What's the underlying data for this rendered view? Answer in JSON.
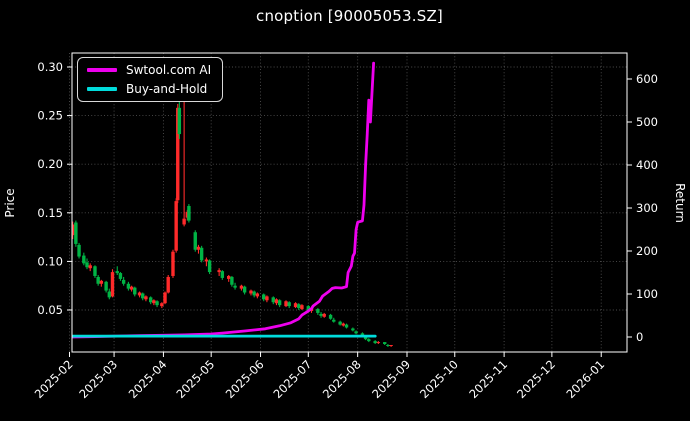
{
  "title": "cnoption [90005053.SZ]",
  "legend": [
    {
      "label": "Swtool.com AI",
      "color": "#ee00ee"
    },
    {
      "label": "Buy-and-Hold",
      "color": "#00dcdc"
    }
  ],
  "colors": {
    "background": "#000000",
    "foreground": "#ffffff",
    "grid": "#4d4d4d",
    "spine": "#ffffff",
    "candle_up": "#ff2a2a",
    "candle_down": "#00b445",
    "strategy_line": "#ee00ee",
    "buy_hold_line": "#00dcdc"
  },
  "chart_data": {
    "type": "candlestick+line",
    "title": "cnoption [90005053.SZ]",
    "grid": "dotted",
    "legend_position": "upper-left",
    "price_axis": {
      "label": "Price",
      "side": "left",
      "tick_values": [
        0.05,
        0.1,
        0.15,
        0.2,
        0.25,
        0.3
      ],
      "tick_labels": [
        "0.05",
        "0.10",
        "0.15",
        "0.20",
        "0.25",
        "0.30"
      ],
      "range": [
        0.008,
        0.315
      ]
    },
    "return_axis": {
      "label": "Return",
      "side": "right",
      "tick_values": [
        0,
        100,
        200,
        300,
        400,
        500,
        600
      ],
      "tick_labels": [
        "0",
        "100",
        "200",
        "300",
        "400",
        "500",
        "600"
      ],
      "range": [
        -35,
        660
      ]
    },
    "x_axis": {
      "tick_labels": [
        "2025-02",
        "2025-03",
        "2025-04",
        "2025-05",
        "2025-06",
        "2025-07",
        "2025-08",
        "2025-09",
        "2025-10",
        "2025-11",
        "2025-12",
        "2026-01"
      ],
      "range": [
        "2025-01-30",
        "2026-01-17"
      ]
    },
    "candles": [
      [
        "2025-02-03",
        0.127,
        0.141,
        0.123,
        0.138
      ],
      [
        "2025-02-05",
        0.14,
        0.142,
        0.115,
        0.118
      ],
      [
        "2025-02-07",
        0.117,
        0.119,
        0.103,
        0.105
      ],
      [
        "2025-02-10",
        0.106,
        0.109,
        0.096,
        0.098
      ],
      [
        "2025-02-12",
        0.099,
        0.103,
        0.092,
        0.094
      ],
      [
        "2025-02-14",
        0.093,
        0.098,
        0.09,
        0.096
      ],
      [
        "2025-02-17",
        0.095,
        0.096,
        0.083,
        0.085
      ],
      [
        "2025-02-19",
        0.084,
        0.086,
        0.075,
        0.077
      ],
      [
        "2025-02-21",
        0.077,
        0.081,
        0.074,
        0.08
      ],
      [
        "2025-02-24",
        0.079,
        0.08,
        0.068,
        0.07
      ],
      [
        "2025-02-26",
        0.069,
        0.072,
        0.061,
        0.063
      ],
      [
        "2025-02-28",
        0.064,
        0.092,
        0.063,
        0.089
      ],
      [
        "2025-03-03",
        0.09,
        0.095,
        0.086,
        0.088
      ],
      [
        "2025-03-05",
        0.088,
        0.089,
        0.08,
        0.082
      ],
      [
        "2025-03-07",
        0.081,
        0.084,
        0.075,
        0.077
      ],
      [
        "2025-03-10",
        0.077,
        0.079,
        0.07,
        0.072
      ],
      [
        "2025-03-12",
        0.071,
        0.075,
        0.069,
        0.074
      ],
      [
        "2025-03-14",
        0.073,
        0.074,
        0.064,
        0.066
      ],
      [
        "2025-03-17",
        0.065,
        0.069,
        0.063,
        0.068
      ],
      [
        "2025-03-19",
        0.067,
        0.068,
        0.06,
        0.062
      ],
      [
        "2025-03-21",
        0.061,
        0.065,
        0.059,
        0.064
      ],
      [
        "2025-03-24",
        0.063,
        0.064,
        0.056,
        0.058
      ],
      [
        "2025-03-26",
        0.057,
        0.061,
        0.055,
        0.06
      ],
      [
        "2025-03-28",
        0.059,
        0.06,
        0.053,
        0.055
      ],
      [
        "2025-03-31",
        0.054,
        0.058,
        0.052,
        0.057
      ],
      [
        "2025-04-02",
        0.057,
        0.069,
        0.056,
        0.068
      ],
      [
        "2025-04-04",
        0.068,
        0.086,
        0.067,
        0.084
      ],
      [
        "2025-04-07",
        0.085,
        0.112,
        0.083,
        0.11
      ],
      [
        "2025-04-09",
        0.111,
        0.165,
        0.109,
        0.162
      ],
      [
        "2025-04-10",
        0.163,
        0.262,
        0.16,
        0.258
      ],
      [
        "2025-04-11",
        0.258,
        0.264,
        0.226,
        0.231
      ],
      [
        "2025-04-14",
        0.138,
        0.268,
        0.136,
        0.144
      ],
      [
        "2025-04-16",
        0.145,
        0.153,
        0.142,
        0.151
      ],
      [
        "2025-04-17",
        0.157,
        0.159,
        0.14,
        0.142
      ],
      [
        "2025-04-21",
        0.13,
        0.132,
        0.11,
        0.112
      ],
      [
        "2025-04-23",
        0.112,
        0.117,
        0.108,
        0.115
      ],
      [
        "2025-04-25",
        0.114,
        0.116,
        0.099,
        0.101
      ],
      [
        "2025-04-28",
        0.1,
        0.104,
        0.095,
        0.102
      ],
      [
        "2025-04-30",
        0.101,
        0.102,
        0.087,
        0.089
      ],
      [
        "2025-05-06",
        0.089,
        0.093,
        0.085,
        0.091
      ],
      [
        "2025-05-08",
        0.09,
        0.091,
        0.081,
        0.083
      ],
      [
        "2025-05-12",
        0.082,
        0.086,
        0.079,
        0.085
      ],
      [
        "2025-05-14",
        0.084,
        0.085,
        0.074,
        0.076
      ],
      [
        "2025-05-16",
        0.075,
        0.078,
        0.071,
        0.073
      ],
      [
        "2025-05-20",
        0.072,
        0.076,
        0.07,
        0.075
      ],
      [
        "2025-05-22",
        0.074,
        0.075,
        0.066,
        0.068
      ],
      [
        "2025-05-26",
        0.067,
        0.071,
        0.065,
        0.07
      ],
      [
        "2025-05-28",
        0.069,
        0.07,
        0.063,
        0.065
      ],
      [
        "2025-05-30",
        0.064,
        0.068,
        0.062,
        0.067
      ],
      [
        "2025-06-03",
        0.066,
        0.067,
        0.059,
        0.061
      ],
      [
        "2025-06-05",
        0.06,
        0.065,
        0.058,
        0.064
      ],
      [
        "2025-06-09",
        0.063,
        0.064,
        0.056,
        0.058
      ],
      [
        "2025-06-11",
        0.057,
        0.062,
        0.055,
        0.061
      ],
      [
        "2025-06-13",
        0.06,
        0.061,
        0.053,
        0.055
      ],
      [
        "2025-06-17",
        0.054,
        0.06,
        0.053,
        0.059
      ],
      [
        "2025-06-19",
        0.058,
        0.059,
        0.052,
        0.054
      ],
      [
        "2025-06-23",
        0.053,
        0.058,
        0.052,
        0.057
      ],
      [
        "2025-06-25",
        0.056,
        0.057,
        0.05,
        0.052
      ],
      [
        "2025-06-27",
        0.051,
        0.056,
        0.05,
        0.055
      ],
      [
        "2025-07-01",
        0.054,
        0.055,
        0.048,
        0.05
      ],
      [
        "2025-07-03",
        0.049,
        0.053,
        0.047,
        0.052
      ],
      [
        "2025-07-07",
        0.051,
        0.052,
        0.045,
        0.047
      ],
      [
        "2025-07-09",
        0.046,
        0.048,
        0.042,
        0.044
      ],
      [
        "2025-07-11",
        0.043,
        0.047,
        0.042,
        0.046
      ],
      [
        "2025-07-15",
        0.045,
        0.046,
        0.04,
        0.041
      ],
      [
        "2025-07-17",
        0.04,
        0.042,
        0.037,
        0.038
      ],
      [
        "2025-07-21",
        0.038,
        0.039,
        0.034,
        0.035
      ],
      [
        "2025-07-23",
        0.034,
        0.037,
        0.033,
        0.036
      ],
      [
        "2025-07-25",
        0.035,
        0.036,
        0.031,
        0.032
      ],
      [
        "2025-07-29",
        0.031,
        0.032,
        0.028,
        0.029
      ],
      [
        "2025-07-31",
        0.028,
        0.029,
        0.025,
        0.026
      ],
      [
        "2025-08-04",
        0.026,
        0.027,
        0.022,
        0.023
      ],
      [
        "2025-08-06",
        0.022,
        0.023,
        0.019,
        0.02
      ],
      [
        "2025-08-08",
        0.02,
        0.021,
        0.017,
        0.018
      ],
      [
        "2025-08-12",
        0.018,
        0.019,
        0.015,
        0.016
      ],
      [
        "2025-08-14",
        0.016,
        0.018,
        0.015,
        0.017
      ],
      [
        "2025-08-18",
        0.017,
        0.017,
        0.014,
        0.015
      ],
      [
        "2025-08-20",
        0.014,
        0.015,
        0.012,
        0.013
      ],
      [
        "2025-08-22",
        0.013,
        0.014,
        0.012,
        0.014
      ]
    ],
    "series": [
      {
        "name": "Swtool.com AI",
        "axis": "return",
        "color": "#ee00ee",
        "points": [
          [
            "2025-02-03",
            0
          ],
          [
            "2025-02-17",
            1
          ],
          [
            "2025-03-03",
            2
          ],
          [
            "2025-03-17",
            3
          ],
          [
            "2025-04-01",
            4
          ],
          [
            "2025-04-14",
            5
          ],
          [
            "2025-05-01",
            7
          ],
          [
            "2025-05-08",
            9
          ],
          [
            "2025-05-22",
            14
          ],
          [
            "2025-06-04",
            19
          ],
          [
            "2025-06-13",
            26
          ],
          [
            "2025-06-20",
            33
          ],
          [
            "2025-06-25",
            42
          ],
          [
            "2025-06-27",
            51
          ],
          [
            "2025-06-30",
            58
          ],
          [
            "2025-07-03",
            66
          ],
          [
            "2025-07-04",
            72
          ],
          [
            "2025-07-08",
            83
          ],
          [
            "2025-07-10",
            95
          ],
          [
            "2025-07-14",
            106
          ],
          [
            "2025-07-16",
            113
          ],
          [
            "2025-07-18",
            115
          ],
          [
            "2025-07-22",
            114
          ],
          [
            "2025-07-25",
            117
          ],
          [
            "2025-07-26",
            150
          ],
          [
            "2025-07-28",
            165
          ],
          [
            "2025-07-29",
            188
          ],
          [
            "2025-07-30",
            195
          ],
          [
            "2025-07-31",
            250
          ],
          [
            "2025-08-01",
            267
          ],
          [
            "2025-08-04",
            270
          ],
          [
            "2025-08-05",
            307
          ],
          [
            "2025-08-06",
            400
          ],
          [
            "2025-08-07",
            470
          ],
          [
            "2025-08-08",
            551
          ],
          [
            "2025-08-09",
            500
          ],
          [
            "2025-08-11",
            637
          ]
        ]
      },
      {
        "name": "Buy-and-Hold",
        "axis": "return",
        "color": "#00dcdc",
        "points": [
          [
            "2025-02-03",
            2
          ],
          [
            "2025-08-12",
            2
          ]
        ]
      }
    ]
  }
}
